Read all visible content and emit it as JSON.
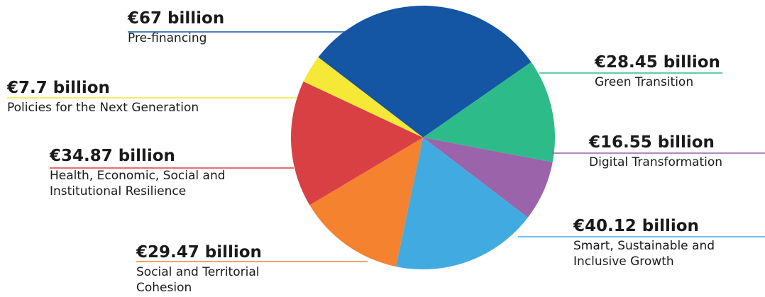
{
  "chart_data": {
    "type": "pie",
    "unit": "€ billion",
    "title": "",
    "slices": [
      {
        "label": "Pre-financing",
        "amount_text": "€67 billion",
        "value": 67,
        "color": "#1455a4"
      },
      {
        "label": "Green Transition",
        "amount_text": "€28.45 billion",
        "value": 28.45,
        "color": "#2ebb8a"
      },
      {
        "label": "Digital Transformation",
        "amount_text": "€16.55 billion",
        "value": 16.55,
        "color": "#9a63aa"
      },
      {
        "label": "Smart, Sustainable and Inclusive Growth",
        "amount_text": "€40.12 billion",
        "value": 40.12,
        "color": "#41abe1"
      },
      {
        "label": "Social and Territorial Cohesion",
        "amount_text": "€29.47 billion",
        "value": 29.47,
        "color": "#f4822f"
      },
      {
        "label": "Health, Economic, Social and Institutional Resilience",
        "amount_text": "€34.87 billion",
        "value": 34.87,
        "color": "#d94043"
      },
      {
        "label": "Policies for the Next Generation",
        "amount_text": "€7.7 billion",
        "value": 7.7,
        "color": "#f6e837"
      }
    ]
  }
}
